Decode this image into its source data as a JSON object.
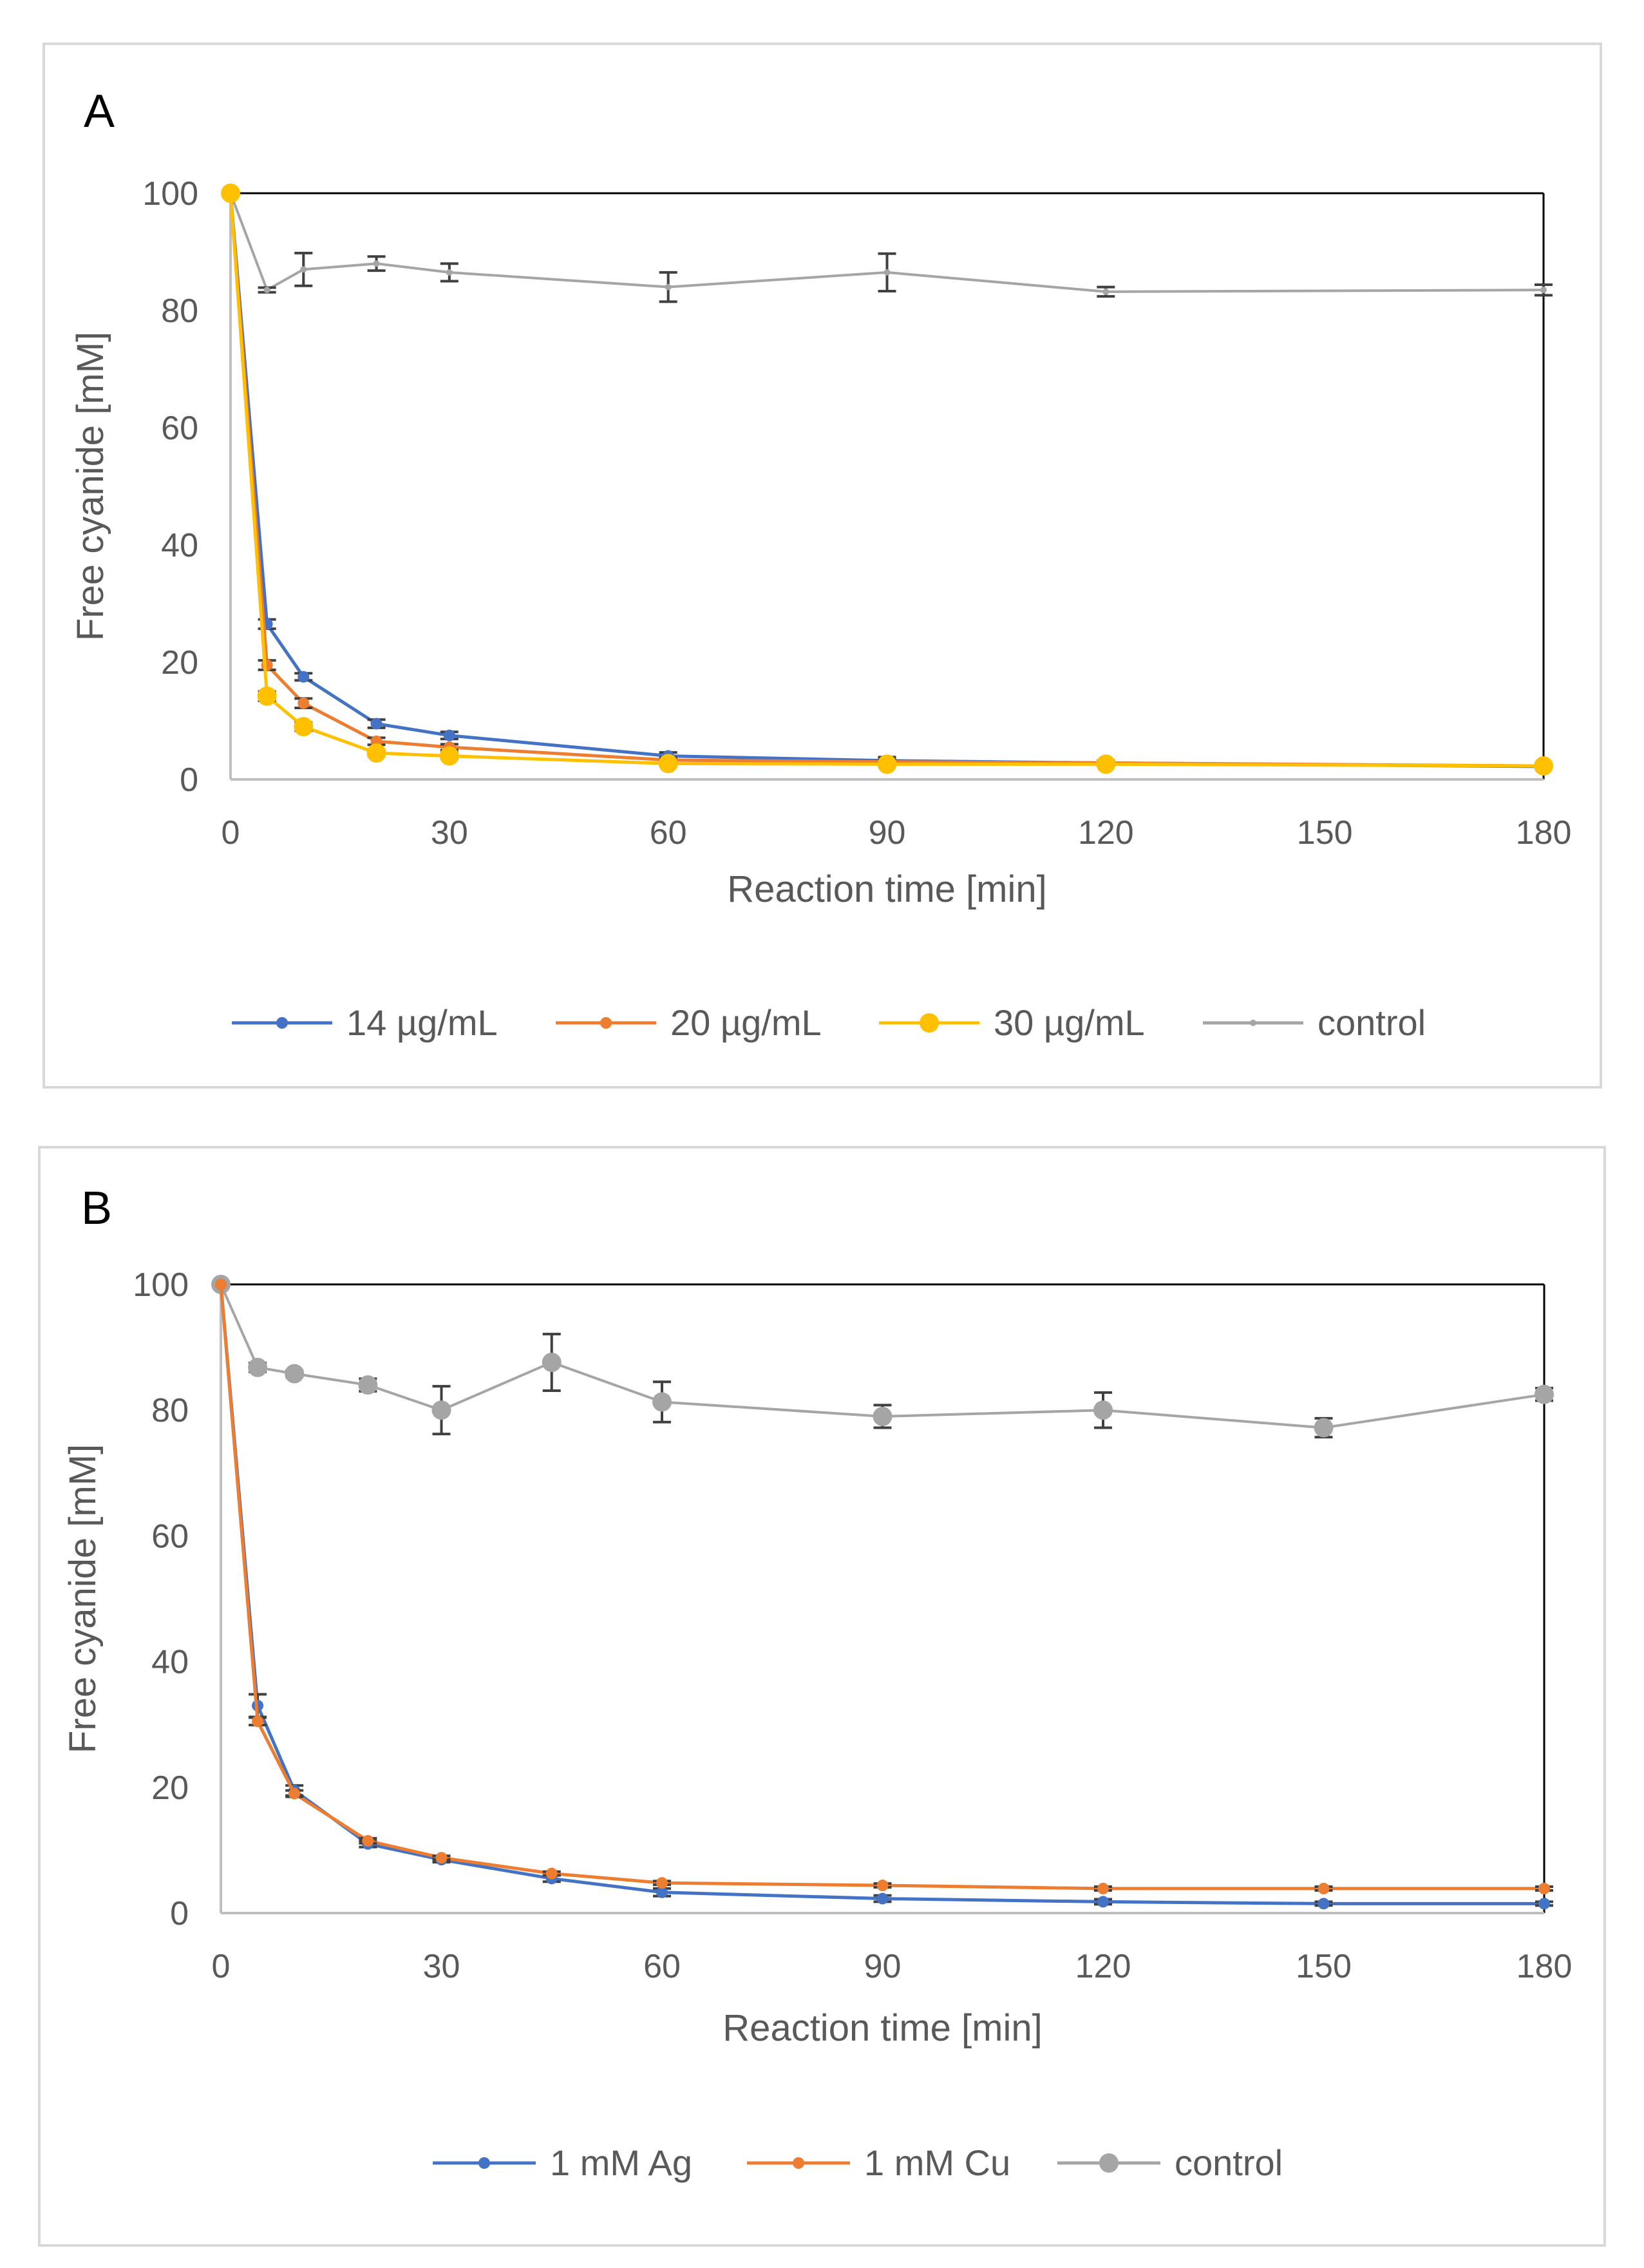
{
  "chart_data": [
    {
      "type": "line",
      "panel_label": "A",
      "xlabel": "Reaction time [min]",
      "ylabel": "Free cyanide [mM]",
      "xlim": [
        0,
        180
      ],
      "ylim": [
        0,
        100
      ],
      "xticks": [
        "0",
        "30",
        "60",
        "90",
        "120",
        "150",
        "180"
      ],
      "yticks": [
        "0",
        "20",
        "40",
        "60",
        "80",
        "100"
      ],
      "legend_position": "bottom",
      "series": [
        {
          "name": "14 µg/mL",
          "color": "#4472c4",
          "marker": "small",
          "x": [
            0,
            5,
            10,
            20,
            30,
            60,
            90,
            120,
            180
          ],
          "y": [
            100,
            26.5,
            17.5,
            9.5,
            7.5,
            4,
            3.2,
            2.8,
            2.2
          ],
          "err": [
            0,
            0.8,
            0.6,
            0.7,
            0.6,
            0.6,
            0.6,
            0.4,
            0.3
          ]
        },
        {
          "name": "20 µg/mL",
          "color": "#ed7d31",
          "marker": "small",
          "x": [
            0,
            5,
            10,
            20,
            30,
            60,
            90,
            120,
            180
          ],
          "y": [
            100,
            19.5,
            13,
            6.5,
            5.5,
            3.3,
            3,
            2.8,
            2.3
          ],
          "err": [
            0,
            0.8,
            0.8,
            0.6,
            0.5,
            0.4,
            0.4,
            0.3,
            0.3
          ]
        },
        {
          "name": "30 µg/mL",
          "color": "#ffc000",
          "marker": "large",
          "x": [
            0,
            5,
            10,
            20,
            30,
            60,
            90,
            120,
            180
          ],
          "y": [
            100,
            14.2,
            9,
            4.5,
            4,
            2.7,
            2.6,
            2.6,
            2.3
          ],
          "err": [
            0,
            0.8,
            0.7,
            0.5,
            0.5,
            0.4,
            0.4,
            0.3,
            0.3
          ]
        },
        {
          "name": "control",
          "color": "#a5a5a5",
          "marker": "tiny",
          "x": [
            0,
            5,
            10,
            20,
            30,
            60,
            90,
            120,
            180
          ],
          "y": [
            100,
            83.5,
            87,
            88,
            86.5,
            84,
            86.5,
            83.2,
            83.5
          ],
          "err": [
            0,
            0.4,
            2.8,
            1.2,
            1.5,
            2.5,
            3.2,
            0.8,
            0.9
          ]
        }
      ]
    },
    {
      "type": "line",
      "panel_label": "B",
      "xlabel": "Reaction time [min]",
      "ylabel": "Free cyanide [mM]",
      "xlim": [
        0,
        180
      ],
      "ylim": [
        0,
        100
      ],
      "xticks": [
        "0",
        "30",
        "60",
        "90",
        "120",
        "150",
        "180"
      ],
      "yticks": [
        "0",
        "20",
        "40",
        "60",
        "80",
        "100"
      ],
      "legend_position": "bottom",
      "series": [
        {
          "name": "1 mM Ag",
          "color": "#4472c4",
          "marker": "small",
          "x": [
            0,
            5,
            10,
            20,
            30,
            45,
            60,
            90,
            120,
            150,
            180
          ],
          "y": [
            100,
            33,
            19.5,
            11,
            8.5,
            5.5,
            3.3,
            2.3,
            1.8,
            1.5,
            1.5
          ],
          "err": [
            0,
            1.8,
            0.8,
            0.5,
            0.4,
            0.5,
            0.6,
            0.5,
            0.4,
            0.3,
            0.3
          ]
        },
        {
          "name": "1 mM Cu",
          "color": "#ed7d31",
          "marker": "small",
          "x": [
            0,
            5,
            10,
            20,
            30,
            45,
            60,
            90,
            120,
            150,
            180
          ],
          "y": [
            100,
            30.5,
            19,
            11.5,
            8.8,
            6.3,
            4.8,
            4.4,
            3.9,
            3.9,
            3.9
          ],
          "err": [
            0,
            0.6,
            0.5,
            0.4,
            0.3,
            0.3,
            0.3,
            0.3,
            0.3,
            0.3,
            0.3
          ]
        },
        {
          "name": "control",
          "color": "#a5a5a5",
          "marker": "large",
          "x": [
            0,
            5,
            10,
            20,
            30,
            45,
            60,
            90,
            120,
            150,
            180
          ],
          "y": [
            100,
            86.8,
            85.8,
            84,
            80,
            87.6,
            81.3,
            79,
            80,
            77.2,
            82.5
          ],
          "err": [
            0,
            0.7,
            0.5,
            1.0,
            3.8,
            4.5,
            3.2,
            1.8,
            2.8,
            1.5,
            1.0
          ]
        }
      ]
    }
  ]
}
